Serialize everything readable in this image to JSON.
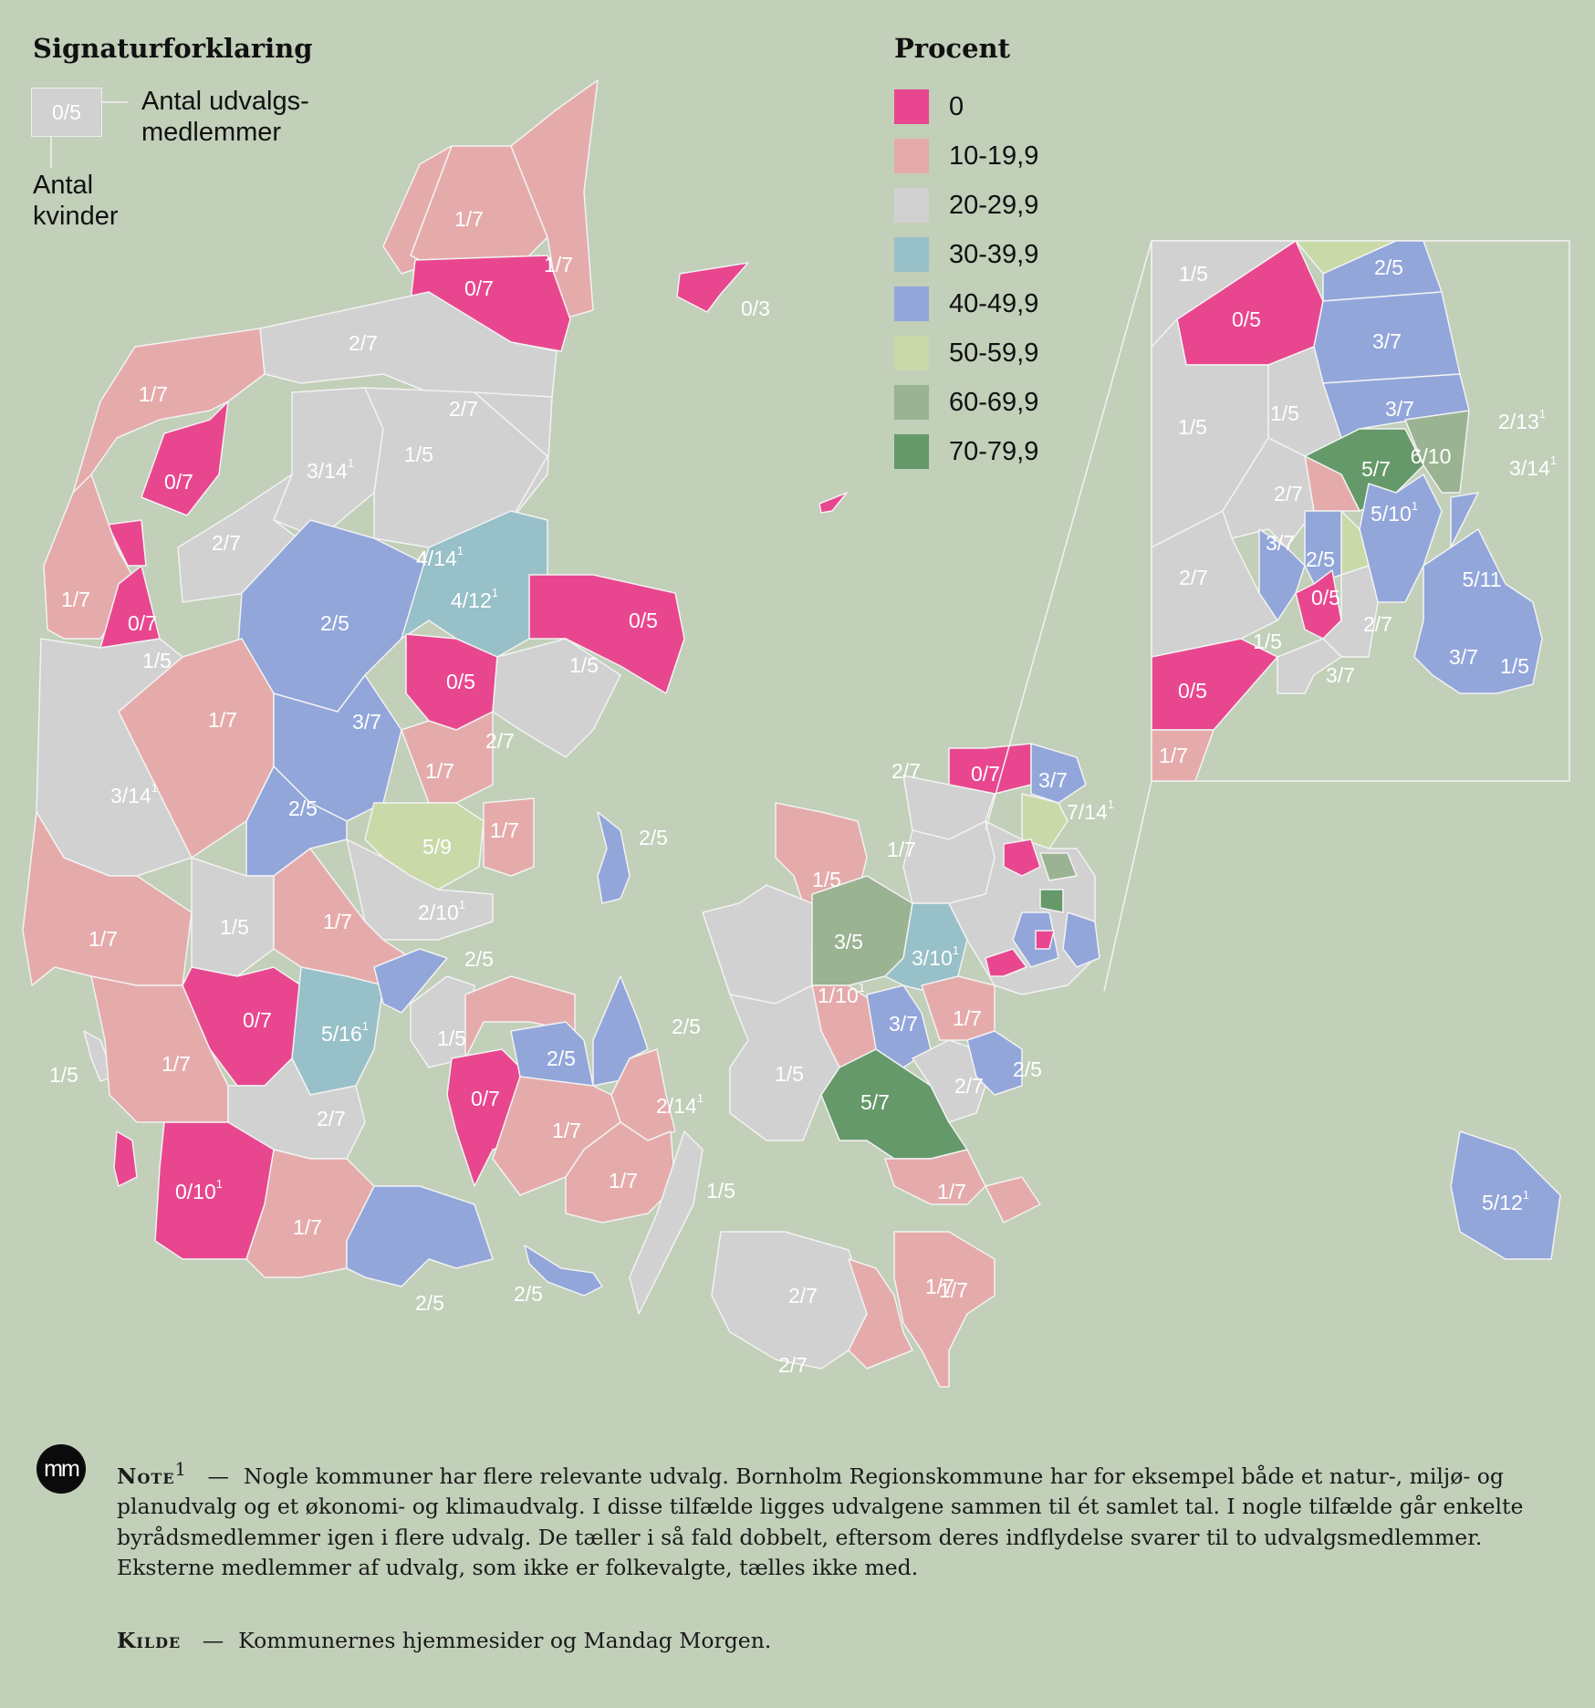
{
  "legend": {
    "title": "Signaturforklaring",
    "sample_value": "0/5",
    "members_label": "Antal udvalgs- medlemmer",
    "women_label": "Antal kvinder"
  },
  "percent_legend": {
    "title": "Procent",
    "items": [
      {
        "label": "0",
        "color": "#e8478f"
      },
      {
        "label": "10-19,9",
        "color": "#e5abab"
      },
      {
        "label": "20-29,9",
        "color": "#d1d1d1"
      },
      {
        "label": "30-39,9",
        "color": "#98c0c8"
      },
      {
        "label": "40-49,9",
        "color": "#92a6da"
      },
      {
        "label": "50-59,9",
        "color": "#c9d9a8"
      },
      {
        "label": "60-69,9",
        "color": "#9ab392"
      },
      {
        "label": "70-79,9",
        "color": "#65996a"
      }
    ]
  },
  "map": {
    "labels": [
      {
        "text": "1/7"
      },
      {
        "text": "1/7"
      },
      {
        "text": "0/7"
      },
      {
        "text": "0/3"
      },
      {
        "text": "2/7"
      },
      {
        "text": "1/7"
      },
      {
        "text": "2/7"
      },
      {
        "text": "0/7"
      },
      {
        "text": "3/14",
        "sup": "1"
      },
      {
        "text": "1/5"
      },
      {
        "text": "2/7"
      },
      {
        "text": "4/14",
        "sup": "1"
      },
      {
        "text": "1/7"
      },
      {
        "text": "0/7"
      },
      {
        "text": "2/5"
      },
      {
        "text": "4/12",
        "sup": "1"
      },
      {
        "text": "0/5"
      },
      {
        "text": "1/5"
      },
      {
        "text": "0/5"
      },
      {
        "text": "1/5"
      },
      {
        "text": "1/7"
      },
      {
        "text": "3/7"
      },
      {
        "text": "2/7"
      },
      {
        "text": "3/14",
        "sup": "1"
      },
      {
        "text": "1/7"
      },
      {
        "text": "2/5"
      },
      {
        "text": "1/7"
      },
      {
        "text": "5/9"
      },
      {
        "text": "2/5"
      },
      {
        "text": "2/10",
        "sup": "1"
      },
      {
        "text": "1/7"
      },
      {
        "text": "1/5"
      },
      {
        "text": "1/7"
      },
      {
        "text": "2/5"
      },
      {
        "text": "0/7"
      },
      {
        "text": "5/16",
        "sup": "1"
      },
      {
        "text": "1/5"
      },
      {
        "text": "1/7"
      },
      {
        "text": "1/5"
      },
      {
        "text": "2/5"
      },
      {
        "text": "2/5"
      },
      {
        "text": "0/7"
      },
      {
        "text": "2/7"
      },
      {
        "text": "2/14",
        "sup": "1"
      },
      {
        "text": "1/7"
      },
      {
        "text": "0/10",
        "sup": "1"
      },
      {
        "text": "1/7"
      },
      {
        "text": "1/7"
      },
      {
        "text": "1/5"
      },
      {
        "text": "1/7"
      },
      {
        "text": "2/5"
      },
      {
        "text": "2/5"
      },
      {
        "text": "2/7"
      },
      {
        "text": "0/7"
      },
      {
        "text": "3/7"
      },
      {
        "text": "7/14",
        "sup": "1"
      },
      {
        "text": "2/7"
      },
      {
        "text": "1/7"
      },
      {
        "text": "1/5"
      },
      {
        "text": "3/5"
      },
      {
        "text": "3/10",
        "sup": "1"
      },
      {
        "text": "1/10",
        "sup": "1"
      },
      {
        "text": "3/7"
      },
      {
        "text": "1/7"
      },
      {
        "text": "1/5"
      },
      {
        "text": "2/7"
      },
      {
        "text": "2/5"
      },
      {
        "text": "5/7"
      },
      {
        "text": "1/7"
      },
      {
        "text": "1/7"
      },
      {
        "text": "2/7"
      },
      {
        "text": "5/12",
        "sup": "1"
      }
    ]
  },
  "inset": {
    "labels": [
      {
        "text": "1/5"
      },
      {
        "text": "2/5"
      },
      {
        "text": "0/5"
      },
      {
        "text": "3/7"
      },
      {
        "text": "1/5"
      },
      {
        "text": "1/5"
      },
      {
        "text": "3/7"
      },
      {
        "text": "2/13",
        "sup": "1"
      },
      {
        "text": "5/7"
      },
      {
        "text": "6/10"
      },
      {
        "text": "3/14",
        "sup": "1"
      },
      {
        "text": "2/7"
      },
      {
        "text": "5/10",
        "sup": "1"
      },
      {
        "text": "3/7"
      },
      {
        "text": "2/5"
      },
      {
        "text": "2/7"
      },
      {
        "text": "0/5"
      },
      {
        "text": "5/11"
      },
      {
        "text": "2/7"
      },
      {
        "text": "1/5"
      },
      {
        "text": "3/7"
      },
      {
        "text": "3/7"
      },
      {
        "text": "1/5"
      },
      {
        "text": "0/5"
      },
      {
        "text": "1/7"
      }
    ]
  },
  "note": {
    "heading": "Note",
    "sup": "1",
    "dash": "—",
    "text": "Nogle kommuner har flere relevante udvalg. Bornholm Regionskommune har for eksempel både et natur-, miljø- og planudvalg og et økonomi- og klimaudvalg. I disse tilfælde ligges udvalgene sammen til ét samlet tal. I nogle tilfælde går enkelte byrådsmedlemmer igen i flere udvalg. De tæller i så fald dobbelt, eftersom deres indflydelse svarer til to udvalgsmedlemmer. Eksterne medlemmer af udvalg, som ikke er folkevalgte, tælles ikke med."
  },
  "source": {
    "heading": "Kilde",
    "dash": "—",
    "text": "Kommunernes hjemmesider og Mandag Morgen."
  },
  "logo": {
    "text": "mm"
  }
}
